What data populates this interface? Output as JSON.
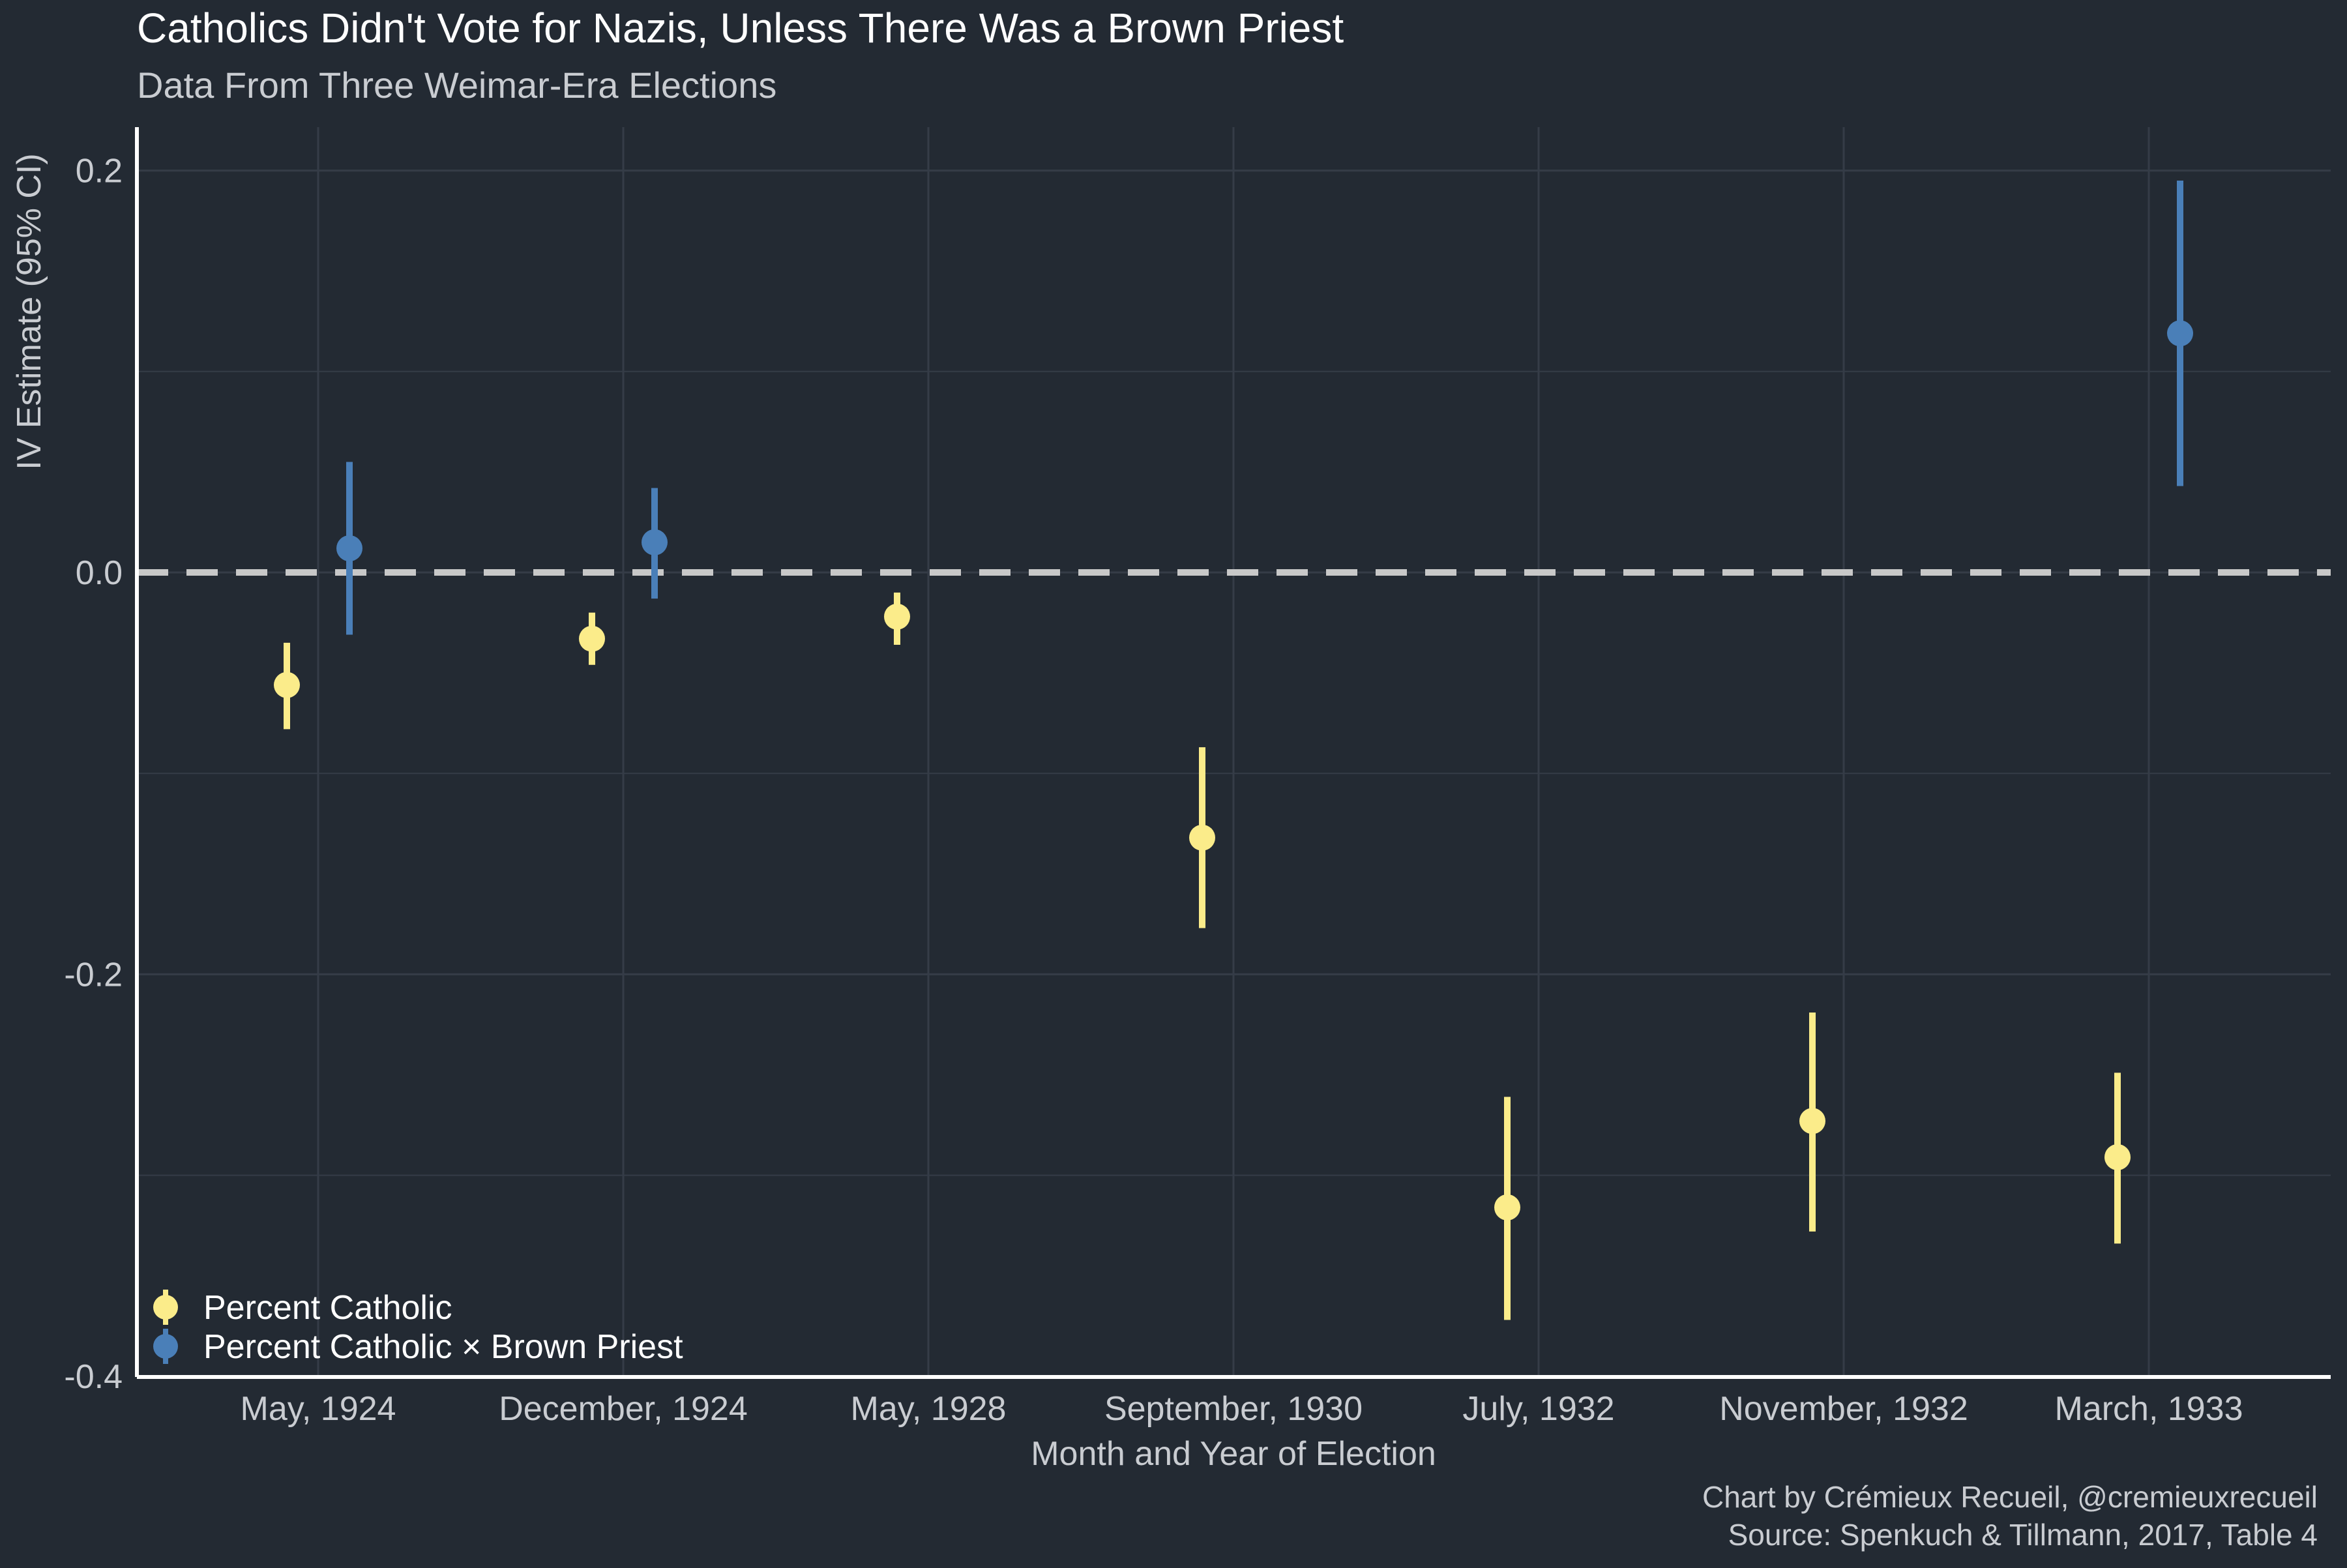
{
  "chart_data": {
    "type": "scatter",
    "title": "Catholics Didn't Vote for Nazis, Unless There Was a Brown Priest",
    "subtitle": "Data From Three Weimar-Era Elections",
    "xlabel": "Month and Year of Election",
    "ylabel": "IV Estimate (95% CI)",
    "categories": [
      "May, 1924",
      "December, 1924",
      "May, 1928",
      "September, 1930",
      "July, 1932",
      "November, 1932",
      "March, 1933"
    ],
    "ylim": [
      -0.4,
      0.225
    ],
    "yticks": [
      0.2,
      0.0,
      -0.2,
      -0.4
    ],
    "ytick_labels": [
      "0.2",
      "0.0",
      "-0.2",
      "-0.4"
    ],
    "reference_line": {
      "y": 0,
      "style": "dashed"
    },
    "grid": true,
    "legend_position": "bottom-left",
    "series": [
      {
        "name": "Percent Catholic",
        "color": "#fbec8a",
        "points": [
          {
            "category": "May, 1924",
            "y": -0.056,
            "lo": -0.078,
            "hi": -0.035
          },
          {
            "category": "December, 1924",
            "y": -0.033,
            "lo": -0.046,
            "hi": -0.02
          },
          {
            "category": "May, 1928",
            "y": -0.022,
            "lo": -0.036,
            "hi": -0.01
          },
          {
            "category": "September, 1930",
            "y": -0.132,
            "lo": -0.177,
            "hi": -0.087
          },
          {
            "category": "July, 1932",
            "y": -0.316,
            "lo": -0.372,
            "hi": -0.261
          },
          {
            "category": "November, 1932",
            "y": -0.273,
            "lo": -0.328,
            "hi": -0.219
          },
          {
            "category": "March, 1933",
            "y": -0.291,
            "lo": -0.334,
            "hi": -0.249
          }
        ]
      },
      {
        "name": "Percent Catholic × Brown Priest",
        "color": "#4a7fb8",
        "points": [
          {
            "category": "May, 1924",
            "y": 0.012,
            "lo": -0.031,
            "hi": 0.055
          },
          {
            "category": "December, 1924",
            "y": 0.015,
            "lo": -0.013,
            "hi": 0.042
          },
          {
            "category": "March, 1933",
            "y": 0.119,
            "lo": 0.043,
            "hi": 0.195
          }
        ]
      }
    ]
  },
  "caption": {
    "line1": "Chart by Crémieux Recueil, @cremieuxrecueil",
    "line2": "Source: Spenkuch & Tillmann, 2017, Table 4"
  },
  "colors": {
    "background": "#232a33",
    "grid": "#353c47",
    "axis": "#ffffff",
    "reference_line": "#c8c8c8",
    "text": "#c9ccd1",
    "title_text": "#ffffff"
  }
}
